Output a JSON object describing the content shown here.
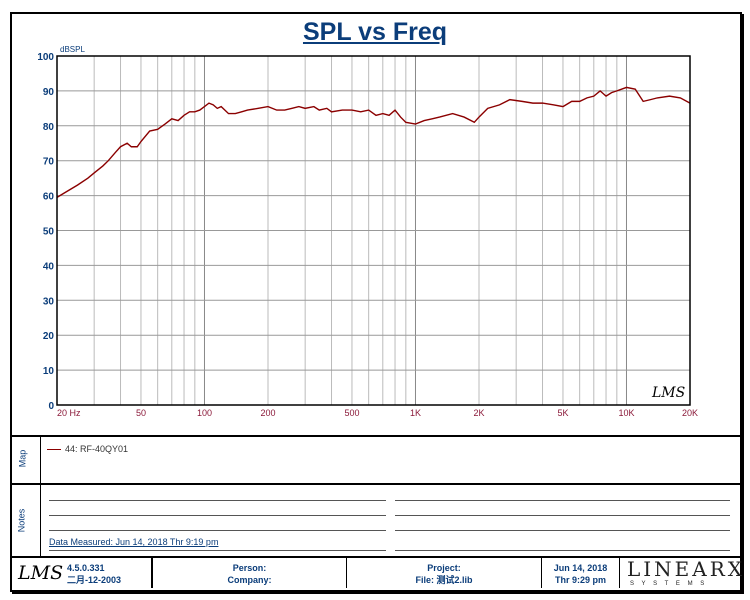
{
  "chart_data": {
    "type": "line",
    "title": "SPL vs Freq",
    "ylabel": "dBSPL",
    "xlabel": "",
    "xscale": "log",
    "xlim": [
      20,
      20000
    ],
    "ylim": [
      0,
      100
    ],
    "yticks": [
      0,
      10,
      20,
      30,
      40,
      50,
      60,
      70,
      80,
      90,
      100
    ],
    "xtick_values": [
      20,
      50,
      100,
      200,
      500,
      1000,
      2000,
      5000,
      10000,
      20000
    ],
    "xtick_labels": [
      "20  Hz",
      "50",
      "100",
      "200",
      "500",
      "1K",
      "2K",
      "5K",
      "10K",
      "20K"
    ],
    "grid": true,
    "series": [
      {
        "name": "44: RF-40QY01",
        "color": "#8b0000",
        "x": [
          20,
          22,
          25,
          28,
          30,
          33,
          35,
          38,
          40,
          43,
          45,
          48,
          50,
          55,
          60,
          65,
          70,
          75,
          80,
          85,
          90,
          95,
          100,
          105,
          110,
          115,
          120,
          130,
          140,
          150,
          160,
          180,
          200,
          220,
          240,
          260,
          280,
          300,
          330,
          350,
          380,
          400,
          450,
          500,
          550,
          600,
          650,
          700,
          750,
          800,
          850,
          900,
          1000,
          1100,
          1200,
          1300,
          1500,
          1700,
          1900,
          2000,
          2200,
          2500,
          2800,
          3200,
          3600,
          4000,
          4500,
          5000,
          5500,
          6000,
          6500,
          7000,
          7500,
          8000,
          8500,
          9000,
          10000,
          11000,
          12000,
          13000,
          14000,
          16000,
          18000,
          20000
        ],
        "y": [
          59.5,
          61,
          63,
          65,
          66.5,
          68.5,
          70,
          72.5,
          74,
          75,
          74,
          74,
          75.5,
          78.5,
          79,
          80.5,
          82,
          81.5,
          83,
          84,
          84,
          84.5,
          85.5,
          86.5,
          86,
          85,
          85.5,
          83.5,
          83.5,
          84,
          84.5,
          85,
          85.5,
          84.5,
          84.5,
          85,
          85.5,
          85,
          85.5,
          84.5,
          85,
          84,
          84.5,
          84.5,
          84,
          84.5,
          83,
          83.5,
          83,
          84.5,
          82.5,
          81,
          80.5,
          81.5,
          82,
          82.5,
          83.5,
          82.5,
          81,
          82.5,
          85,
          86,
          87.5,
          87,
          86.5,
          86.5,
          86,
          85.5,
          87,
          87,
          88,
          88.5,
          90,
          88.5,
          89.5,
          90,
          91,
          90.5,
          87,
          87.5,
          88,
          88.5,
          88,
          86.5
        ]
      }
    ]
  },
  "legend_label": "44: RF-40QY01",
  "logo_text": "LMS",
  "sections": {
    "map": "Map",
    "notes": "Notes"
  },
  "notes": {
    "data_measured": "Data Measured: Jun 14, 2018  Thr  9:19 pm"
  },
  "footer": {
    "version": "4.5.0.331",
    "build_date": "二月-12-2003",
    "person": "Person:",
    "company": "Company:",
    "project": "Project:",
    "file": "File: 测试2.lib",
    "date": "Jun 14, 2018",
    "time": "Thr  9:29 pm",
    "brand": "LINEARX",
    "brand_sub": "S Y S T E M S"
  }
}
